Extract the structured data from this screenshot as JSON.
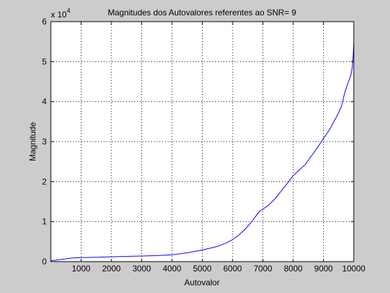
{
  "colors": {
    "figure_background": "#cccccc",
    "axes_background": "#ffffff",
    "line": "#0000ff",
    "axis": "#000000"
  },
  "chart_data": {
    "type": "line",
    "title": "Magnitudes dos Autovalores referentes ao SNR= 9",
    "xlabel": "Autovalor",
    "ylabel": "Magnitude",
    "y_multiplier_base": "x 10",
    "y_multiplier_exponent": "4",
    "xlim": [
      1,
      10000
    ],
    "ylim": [
      0,
      6
    ],
    "xticks": [
      1000,
      2000,
      3000,
      4000,
      5000,
      6000,
      7000,
      8000,
      9000,
      10000
    ],
    "yticks": [
      0,
      1,
      2,
      3,
      4,
      5,
      6
    ],
    "grid": true,
    "series": [
      {
        "x": [
          1,
          100,
          300,
          500,
          700,
          1000,
          1500,
          2000,
          2500,
          3000,
          3500,
          4000,
          4500,
          5000,
          5500,
          5800,
          6000,
          6200,
          6400,
          6600,
          6800,
          6900,
          7000,
          7200,
          7400,
          7600,
          7800,
          8000,
          8200,
          8400,
          8600,
          8800,
          9000,
          9200,
          9400,
          9500,
          9600,
          9700,
          9800,
          9850,
          9900,
          9950,
          9980,
          10000
        ],
        "y": [
          0.02,
          0.03,
          0.05,
          0.07,
          0.09,
          0.1,
          0.11,
          0.12,
          0.13,
          0.14,
          0.15,
          0.17,
          0.22,
          0.29,
          0.38,
          0.47,
          0.55,
          0.66,
          0.8,
          0.97,
          1.17,
          1.27,
          1.31,
          1.42,
          1.57,
          1.76,
          1.95,
          2.15,
          2.29,
          2.43,
          2.64,
          2.85,
          3.08,
          3.3,
          3.58,
          3.72,
          3.9,
          4.22,
          4.45,
          4.55,
          4.65,
          4.85,
          5.15,
          5.5
        ]
      }
    ]
  }
}
